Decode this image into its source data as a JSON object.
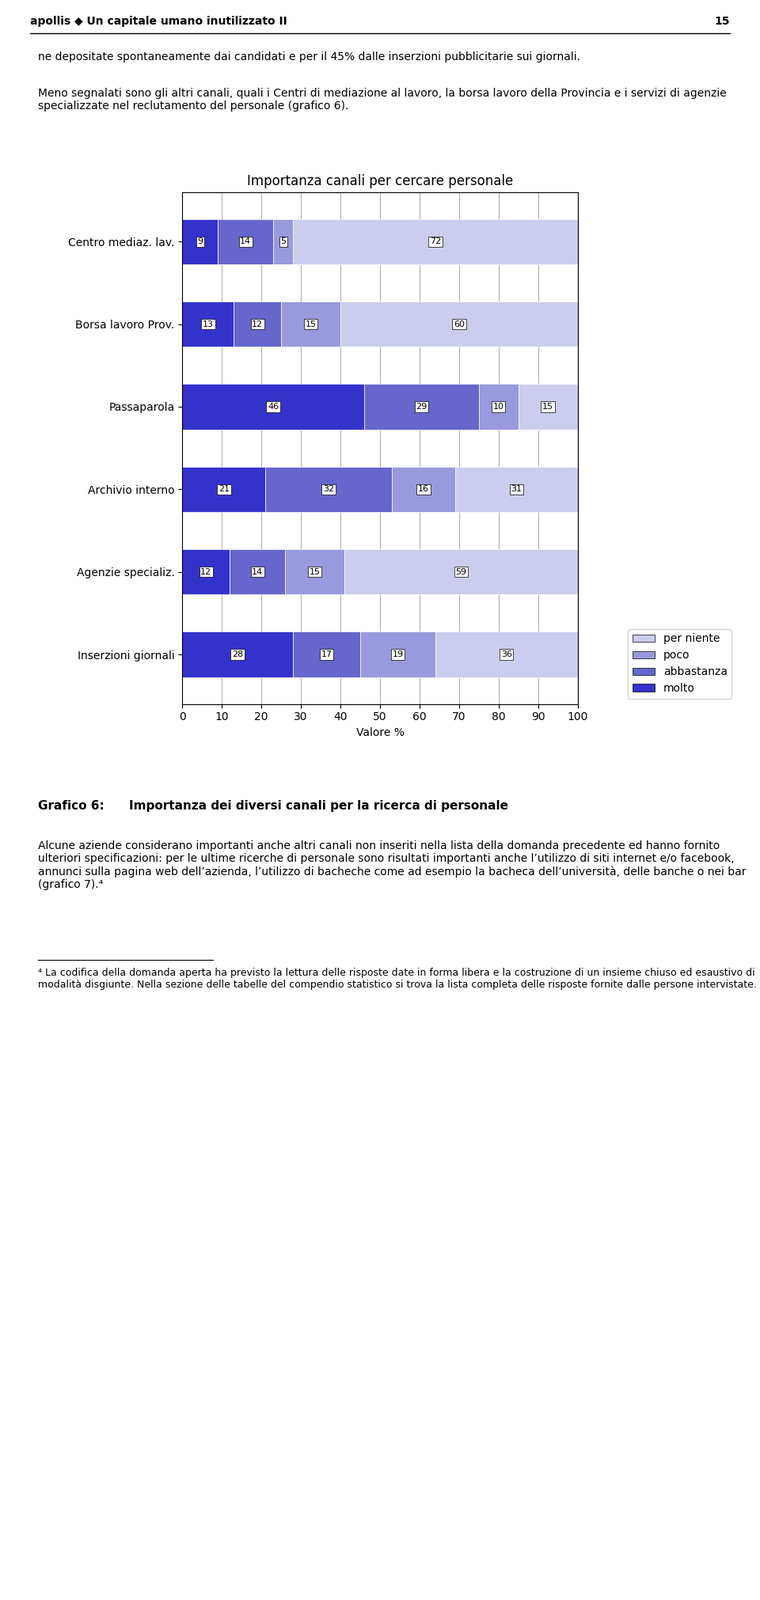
{
  "chart_data": {
    "type": "bar",
    "orientation": "horizontal",
    "stacked": true,
    "title": "Importanza canali per cercare personale",
    "x_label": "Valore %",
    "categories": [
      "Inserzioni giornali",
      "Agenzie specializ.",
      "Archivio interno",
      "Passaparola",
      "Borsa lavoro Prov.",
      "Centro mediaz. lav."
    ],
    "series": [
      {
        "name": "molto",
        "color": "#3333cc",
        "values": [
          28,
          12,
          21,
          46,
          13,
          9
        ]
      },
      {
        "name": "abbastanza",
        "color": "#6666cc",
        "values": [
          17,
          14,
          32,
          29,
          12,
          14
        ]
      },
      {
        "name": "poco",
        "color": "#9999dd",
        "values": [
          19,
          15,
          16,
          10,
          15,
          5
        ]
      },
      {
        "name": "per niente",
        "color": "#ccccee",
        "values": [
          36,
          59,
          31,
          15,
          60,
          72
        ]
      }
    ],
    "xlim": [
      0,
      100
    ],
    "xticks": [
      0,
      10,
      20,
      30,
      40,
      50,
      60,
      70,
      80,
      90,
      100
    ],
    "grid": true,
    "legend": "lower right",
    "data_labels": true,
    "annotations": [
      "apollis ◆ Un capitale umano inutilizzato II",
      "15",
      "ne depositate spontaneamente dai candidati e per il 45% dalle inserzioni pubblicitarie sui giornali.",
      "Meno segnalati sono gli altri canali, quali i Centri di mediazione al lavoro, la borsa lavoro della Provincia e i servizi di agenzie specializzate nel reclutamento del personale (grafico 6).",
      "Grafico 6:",
      "Importanza dei diversi canali per la ricerca di personale",
      "Alcune aziende considerano importanti anche altri canali non inseriti nella lista della domanda precedente ed hanno fornito ulteriori specificazioni: per le ultime ricerche di personale sono risultati importanti anche l’utilizzo di siti internet e/o facebook, annunci sulla pagina web dell’azienda, l’utilizzo di bacheche come ad esempio la bacheca dell’università, delle banche o nei bar (grafico 7).⁴",
      "⁴ La codifica della domanda aperta ha previsto la lettura delle risposte date in forma libera e la costruzione di un insieme chiuso ed esaustivo di modalità disgiunte. Nella sezione delle tabelle del compendio statistico si trova la lista completa delle risposte fornite dalle persone intervistate."
    ]
  }
}
